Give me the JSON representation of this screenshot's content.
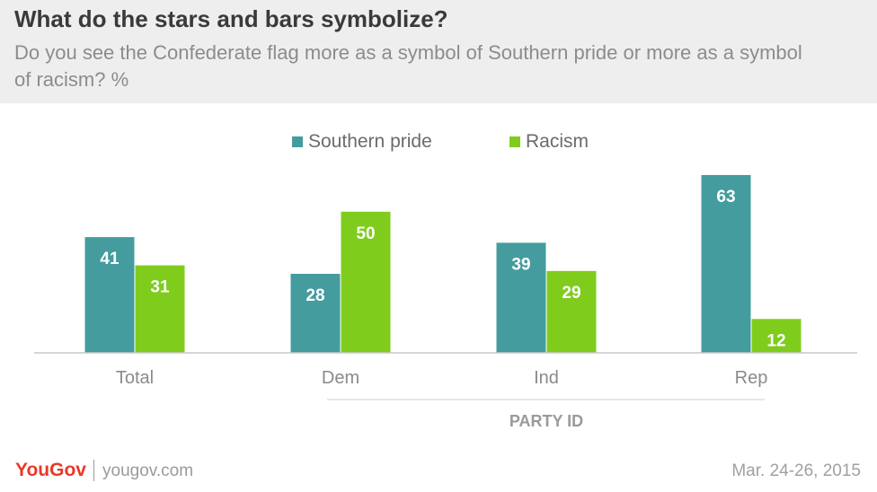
{
  "header": {
    "title": "What do the stars and bars symbolize?",
    "subtitle": "Do you see the Confederate flag more as a symbol of Southern pride or more as a symbol of racism? %"
  },
  "chart_data": {
    "type": "bar",
    "categories": [
      "Total",
      "Dem",
      "Ind",
      "Rep"
    ],
    "series": [
      {
        "name": "Southern pride",
        "values": [
          41,
          28,
          39,
          63
        ],
        "color": "#449c9e"
      },
      {
        "name": "Racism",
        "values": [
          31,
          50,
          29,
          12
        ],
        "color": "#7fcc1d"
      }
    ],
    "group_label": "PARTY ID",
    "ylim": [
      0,
      70
    ],
    "grid": false,
    "legend_position": "top-center",
    "data_label_color": "#ffffff",
    "axis_color": "#c8c8c8"
  },
  "footer": {
    "logo": "YouGov",
    "url": "yougov.com",
    "date": "Mar. 24-26, 2015",
    "logo_color": "#e8392a"
  }
}
